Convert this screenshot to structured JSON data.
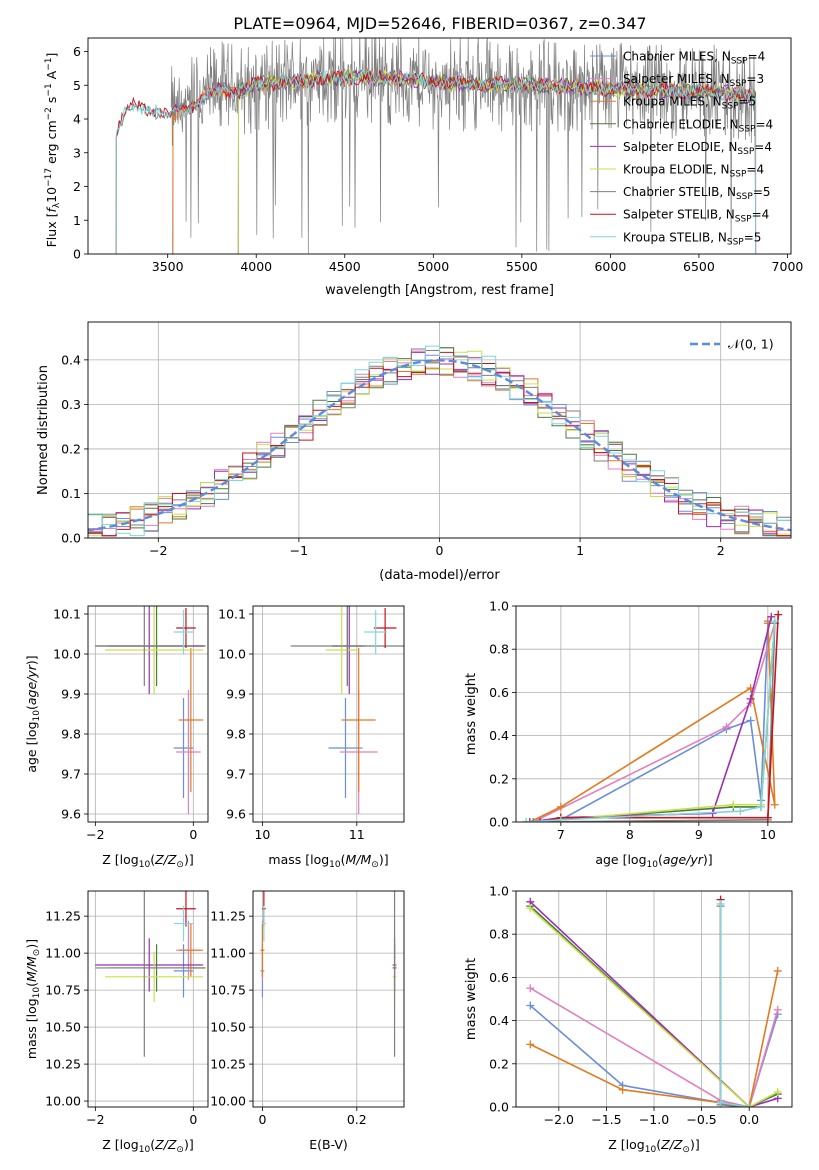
{
  "title": "PLATE=0964, MJD=52646, FIBERID=0367, z=0.347",
  "colors": {
    "Chabrier MILES": "#6a8fd8",
    "Salpeter MILES": "#e37fbf",
    "Kroupa MILES": "#e07b20",
    "Chabrier ELODIE": "#4c7a3f",
    "Salpeter ELODIE": "#9b2fb0",
    "Kroupa ELODIE": "#c6e24a",
    "Chabrier STELIB": "#7f7f7f",
    "Salpeter STELIB": "#c4141c",
    "Kroupa STELIB": "#7fd6dd"
  },
  "chart_data": [
    {
      "id": "spectrum",
      "type": "line",
      "xlabel": "wavelength [Angstrom, rest frame]",
      "ylabel": "Flux [f_λ10^−17 erg cm^−2 s^−1 A^−1]",
      "xlim": [
        3050,
        7020
      ],
      "ylim": [
        0,
        6.4
      ],
      "xticks": [
        3500,
        4000,
        4500,
        5000,
        5500,
        6000,
        6500,
        7000
      ],
      "yticks": [
        0,
        1,
        2,
        3,
        4,
        5,
        6
      ],
      "legend_position": "top-right",
      "legend": [
        {
          "name": "Chabrier MILES",
          "nssp": "4"
        },
        {
          "name": "Salpeter MILES",
          "nssp": "3"
        },
        {
          "name": "Kroupa MILES",
          "nssp": "5"
        },
        {
          "name": "Chabrier ELODIE",
          "nssp": "4"
        },
        {
          "name": "Salpeter ELODIE",
          "nssp": "4"
        },
        {
          "name": "Kroupa ELODIE",
          "nssp": "4"
        },
        {
          "name": "Chabrier STELIB",
          "nssp": "5"
        },
        {
          "name": "Salpeter STELIB",
          "nssp": "4"
        },
        {
          "name": "Kroupa STELIB",
          "nssp": "5"
        }
      ],
      "continuum": [
        [
          3210,
          3.6
        ],
        [
          3250,
          4.1
        ],
        [
          3300,
          4.4
        ],
        [
          3400,
          4.3
        ],
        [
          3500,
          4.1
        ],
        [
          3600,
          4.3
        ],
        [
          3700,
          4.6
        ],
        [
          3800,
          4.9
        ],
        [
          3900,
          4.8
        ],
        [
          4000,
          5.05
        ],
        [
          4200,
          5.1
        ],
        [
          4400,
          5.2
        ],
        [
          4600,
          5.25
        ],
        [
          4800,
          5.2
        ],
        [
          5000,
          5.1
        ],
        [
          5200,
          5.05
        ],
        [
          5500,
          5.0
        ],
        [
          5800,
          4.95
        ],
        [
          6000,
          4.9
        ],
        [
          6300,
          4.85
        ],
        [
          6600,
          4.8
        ],
        [
          6820,
          4.7
        ]
      ],
      "model_ranges": {
        "Chabrier MILES": [
          3530,
          6820
        ],
        "Salpeter MILES": [
          3530,
          6820
        ],
        "Kroupa MILES": [
          3530,
          6820
        ],
        "Chabrier ELODIE": [
          3900,
          6820
        ],
        "Salpeter ELODIE": [
          3900,
          6820
        ],
        "Kroupa ELODIE": [
          3900,
          6820
        ],
        "Chabrier STELIB": [
          3210,
          6820
        ],
        "Salpeter STELIB": [
          3210,
          6820
        ],
        "Kroupa STELIB": [
          3210,
          6820
        ]
      },
      "data_range": [
        3520,
        6820
      ]
    },
    {
      "id": "residuals",
      "type": "bar",
      "xlabel": "(data-model)/error",
      "ylabel": "Normed distribution",
      "xlim": [
        -2.5,
        2.5
      ],
      "ylim": [
        0,
        0.485
      ],
      "xticks": [
        -2,
        -1,
        0,
        1,
        2
      ],
      "yticks": [
        0.0,
        0.1,
        0.2,
        0.3,
        0.4
      ],
      "legend_position": "top-right",
      "legend": "𝒩(0, 1)",
      "bin_width": 0.1,
      "bin_start": -2.5
    },
    {
      "id": "age_vs_Z",
      "type": "scatter",
      "xlabel": "Z [log10(Z/Z⊙)]",
      "ylabel": "age [log10(age/yr)]",
      "xlim": [
        -2.15,
        0.3
      ],
      "ylim": [
        9.58,
        10.12
      ],
      "xticks": [
        -2,
        0
      ],
      "yticks": [
        9.6,
        9.7,
        9.8,
        9.9,
        10.0,
        10.1
      ]
    },
    {
      "id": "age_vs_mass",
      "type": "scatter",
      "xlabel": "mass [log10(M/M⊙)]",
      "xlim": [
        9.9,
        11.5
      ],
      "ylim": [
        9.58,
        10.12
      ],
      "xticks": [
        10,
        11
      ],
      "yticks": [
        9.6,
        9.7,
        9.8,
        9.9,
        10.0,
        10.1
      ]
    },
    {
      "id": "weight_vs_age",
      "type": "line",
      "xlabel": "age [log10(age/yr)]",
      "ylabel": "mass weight",
      "xlim": [
        6.35,
        10.35
      ],
      "ylim": [
        0,
        1
      ],
      "xticks": [
        7,
        8,
        9,
        10
      ],
      "yticks": [
        0.0,
        0.2,
        0.4,
        0.6,
        0.8,
        1.0
      ],
      "series": [
        {
          "key": "Chabrier MILES",
          "points": [
            [
              6.5,
              0.0
            ],
            [
              7.0,
              0.01
            ],
            [
              9.4,
              0.43
            ],
            [
              9.75,
              0.47
            ],
            [
              9.9,
              0.1
            ],
            [
              10.0,
              0.92
            ]
          ]
        },
        {
          "key": "Salpeter MILES",
          "points": [
            [
              6.6,
              0.0
            ],
            [
              9.4,
              0.44
            ],
            [
              9.75,
              0.55
            ],
            [
              10.1,
              0.92
            ]
          ]
        },
        {
          "key": "Kroupa MILES",
          "points": [
            [
              6.55,
              0.0
            ],
            [
              7.0,
              0.07
            ],
            [
              9.75,
              0.62
            ],
            [
              10.1,
              0.08
            ],
            [
              10.0,
              0.93
            ]
          ]
        },
        {
          "key": "Chabrier ELODIE",
          "points": [
            [
              6.5,
              0.0
            ],
            [
              7.0,
              0.01
            ],
            [
              9.5,
              0.07
            ],
            [
              9.9,
              0.07
            ],
            [
              10.1,
              0.93
            ]
          ]
        },
        {
          "key": "Salpeter ELODIE",
          "points": [
            [
              6.55,
              0.0
            ],
            [
              7.0,
              0.02
            ],
            [
              9.2,
              0.04
            ],
            [
              9.75,
              0.57
            ],
            [
              10.05,
              0.95
            ]
          ]
        },
        {
          "key": "Kroupa ELODIE",
          "points": [
            [
              6.5,
              0.0
            ],
            [
              7.0,
              0.01
            ],
            [
              9.5,
              0.08
            ],
            [
              9.9,
              0.08
            ],
            [
              10.1,
              0.93
            ]
          ]
        },
        {
          "key": "Chabrier STELIB",
          "points": [
            [
              6.6,
              0.0
            ],
            [
              10.0,
              0.01
            ],
            [
              10.1,
              0.92
            ]
          ]
        },
        {
          "key": "Salpeter STELIB",
          "points": [
            [
              6.7,
              0.0
            ],
            [
              7.0,
              0.02
            ],
            [
              10.0,
              0.02
            ],
            [
              10.15,
              0.96
            ]
          ]
        },
        {
          "key": "Kroupa STELIB",
          "points": [
            [
              6.5,
              0.0
            ],
            [
              7.0,
              0.01
            ],
            [
              9.6,
              0.05
            ],
            [
              9.9,
              0.07
            ],
            [
              10.1,
              0.93
            ]
          ]
        }
      ]
    },
    {
      "id": "mass_vs_Z",
      "type": "scatter",
      "xlabel": "Z [log10(Z/Z⊙)]",
      "ylabel": "mass [log10(M/M⊙)]",
      "xlim": [
        -2.15,
        0.3
      ],
      "ylim": [
        9.96,
        11.42
      ],
      "xticks": [
        -2,
        0
      ],
      "yticks": [
        10.0,
        10.25,
        10.5,
        10.75,
        11.0,
        11.25
      ]
    },
    {
      "id": "mass_vs_ebv",
      "type": "scatter",
      "xlabel": "E(B-V)",
      "xlim": [
        -0.02,
        0.3
      ],
      "ylim": [
        9.96,
        11.42
      ],
      "xticks": [
        0.0,
        0.2
      ],
      "yticks": [
        10.0,
        10.25,
        10.5,
        10.75,
        11.0,
        11.25
      ]
    },
    {
      "id": "weight_vs_Z",
      "type": "line",
      "xlabel": "Z [log10(Z/Z⊙)]",
      "ylabel": "mass weight",
      "xlim": [
        -2.45,
        0.45
      ],
      "ylim": [
        0,
        1
      ],
      "xticks": [
        -2.0,
        -1.5,
        -1.0,
        -0.5,
        0.0
      ],
      "yticks": [
        0.0,
        0.2,
        0.4,
        0.6,
        0.8,
        1.0
      ],
      "series": [
        {
          "key": "Chabrier MILES",
          "points": [
            [
              -2.3,
              0.47
            ],
            [
              -1.33,
              0.1
            ],
            [
              -0.3,
              0.02
            ],
            [
              0.0,
              0.0
            ],
            [
              0.3,
              0.43
            ]
          ]
        },
        {
          "key": "Salpeter MILES",
          "points": [
            [
              -2.3,
              0.55
            ],
            [
              -0.3,
              0.03
            ],
            [
              0.0,
              0.0
            ],
            [
              0.3,
              0.45
            ]
          ]
        },
        {
          "key": "Kroupa MILES",
          "points": [
            [
              -2.3,
              0.29
            ],
            [
              -1.33,
              0.08
            ],
            [
              -0.3,
              0.02
            ],
            [
              0.0,
              0.0
            ],
            [
              0.3,
              0.63
            ]
          ]
        },
        {
          "key": "Chabrier ELODIE",
          "points": [
            [
              -2.3,
              0.93
            ],
            [
              0.0,
              0.0
            ],
            [
              0.3,
              0.06
            ]
          ]
        },
        {
          "key": "Salpeter ELODIE",
          "points": [
            [
              -2.3,
              0.95
            ],
            [
              0.0,
              0.0
            ],
            [
              0.3,
              0.04
            ]
          ]
        },
        {
          "key": "Kroupa ELODIE",
          "points": [
            [
              -2.3,
              0.92
            ],
            [
              0.0,
              0.0
            ],
            [
              0.3,
              0.07
            ]
          ]
        },
        {
          "key": "Chabrier STELIB",
          "points": [
            [
              -0.3,
              0.93
            ],
            [
              -0.3,
              0.01
            ],
            [
              0.0,
              0.0
            ]
          ]
        },
        {
          "key": "Salpeter STELIB",
          "points": [
            [
              -0.3,
              0.96
            ],
            [
              -0.3,
              0.02
            ],
            [
              0.0,
              0.0
            ]
          ]
        },
        {
          "key": "Kroupa STELIB",
          "points": [
            [
              -0.3,
              0.94
            ],
            [
              -0.3,
              0.02
            ],
            [
              0.0,
              0.0
            ]
          ]
        }
      ]
    }
  ],
  "sfh_points": [
    {
      "key": "Chabrier MILES",
      "Z": -0.2,
      "Zerr": 0.2,
      "age": 9.765,
      "ageerr": 0.125,
      "mass": 10.88,
      "masserr": 0.18,
      "ebv": 0.0
    },
    {
      "key": "Salpeter MILES",
      "Z": -0.1,
      "Zerr": 0.25,
      "age": 9.755,
      "ageerr": 0.155,
      "mass": 11.02,
      "masserr": 0.2,
      "ebv": 0.0
    },
    {
      "key": "Kroupa MILES",
      "Z": -0.05,
      "Zerr": 0.25,
      "age": 9.835,
      "ageerr": 0.18,
      "mass": 11.02,
      "masserr": 0.18,
      "ebv": 0.0
    },
    {
      "key": "Chabrier ELODIE",
      "Z": -0.75,
      "Zerr": 1.0,
      "age": 10.02,
      "ageerr": 0.1,
      "mass": 10.9,
      "masserr": 0.16,
      "ebv": 0.28
    },
    {
      "key": "Salpeter ELODIE",
      "Z": -0.9,
      "Zerr": 1.1,
      "age": 10.02,
      "ageerr": 0.12,
      "mass": 10.92,
      "masserr": 0.18,
      "ebv": 0.28
    },
    {
      "key": "Kroupa ELODIE",
      "Z": -0.8,
      "Zerr": 1.0,
      "age": 10.01,
      "ageerr": 0.11,
      "mass": 10.84,
      "masserr": 0.17,
      "ebv": 0.28
    },
    {
      "key": "Chabrier STELIB",
      "Z": -1.0,
      "Zerr": 1.0,
      "age": 10.02,
      "ageerr": 0.1,
      "mass": 10.9,
      "masserr": 0.6,
      "ebv": 0.28
    },
    {
      "key": "Salpeter STELIB",
      "Z": -0.15,
      "Zerr": 0.2,
      "age": 10.065,
      "ageerr": 0.05,
      "mass": 11.3,
      "masserr": 0.12,
      "ebv": 0.003
    },
    {
      "key": "Kroupa STELIB",
      "Z": -0.2,
      "Zerr": 0.2,
      "age": 10.055,
      "ageerr": 0.055,
      "mass": 11.2,
      "masserr": 0.12,
      "ebv": 0.003
    }
  ]
}
